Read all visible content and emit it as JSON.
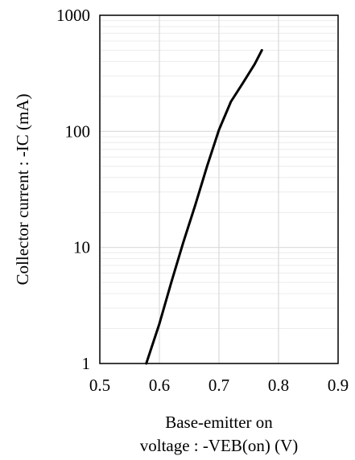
{
  "chart_data": {
    "type": "line",
    "title": "",
    "xlabel_lines": [
      "Base-emitter on",
      "voltage : -VEB(on) (V)"
    ],
    "ylabel": "Collector current : -IC (mA)",
    "xlim": [
      0.5,
      0.9
    ],
    "ylim": [
      1,
      1000
    ],
    "yscale": "log",
    "xticks": [
      0.5,
      0.6,
      0.7,
      0.8,
      0.9
    ],
    "xtick_labels": [
      "0.5",
      "0.6",
      "0.7",
      "0.8",
      "0.9"
    ],
    "yticks": [
      1,
      10,
      100,
      1000
    ],
    "ytick_labels": [
      "1",
      "10",
      "100",
      "1000"
    ],
    "grid": true,
    "legend": "none",
    "series": [
      {
        "line_color": "#000000",
        "x": [
          0.578,
          0.6,
          0.62,
          0.64,
          0.66,
          0.68,
          0.7,
          0.72,
          0.74,
          0.76,
          0.772
        ],
        "y": [
          1,
          2.2,
          5.0,
          11,
          23,
          50,
          103,
          180,
          260,
          380,
          500
        ]
      }
    ]
  }
}
